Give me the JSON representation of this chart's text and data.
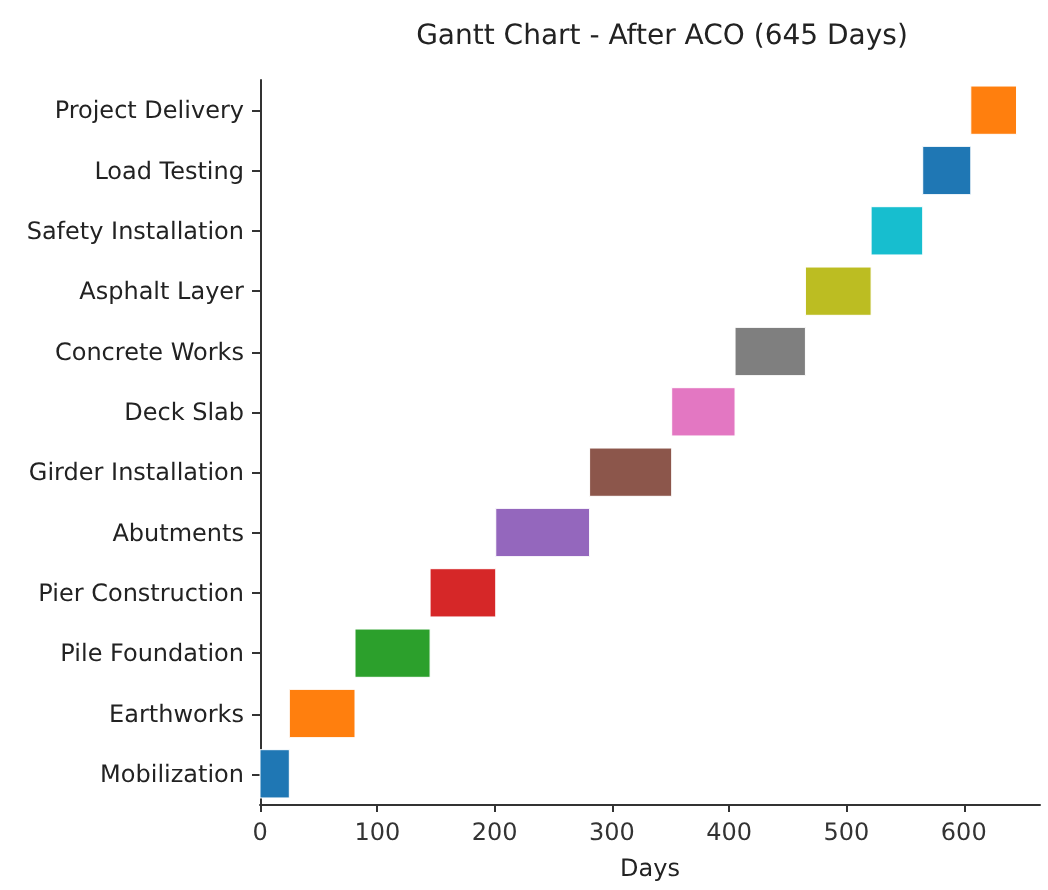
{
  "chart_data": {
    "type": "bar",
    "orientation": "horizontal",
    "title": "Gantt Chart - After ACO (645 Days)",
    "xlabel": "Days",
    "categories": [
      "Project Delivery",
      "Load Testing",
      "Safety Installation",
      "Asphalt Layer",
      "Concrete Works",
      "Deck Slab",
      "Girder Installation",
      "Abutments",
      "Pier Construction",
      "Pile Foundation",
      "Earthworks",
      "Mobilization"
    ],
    "base": [
      606,
      565,
      521,
      465,
      405,
      351,
      281,
      201,
      145,
      81,
      25,
      0
    ],
    "values": [
      39,
      41,
      44,
      56,
      60,
      54,
      70,
      80,
      56,
      64,
      56,
      25
    ],
    "colors": [
      "#ff7f0e",
      "#1f77b4",
      "#17becf",
      "#bcbd22",
      "#7f7f7f",
      "#e377c2",
      "#8c564b",
      "#9467bd",
      "#d62728",
      "#2ca02c",
      "#ff7f0e",
      "#1f77b4"
    ],
    "xlim": [
      0,
      665
    ],
    "xticks": [
      0,
      100,
      200,
      300,
      400,
      500,
      600
    ]
  }
}
